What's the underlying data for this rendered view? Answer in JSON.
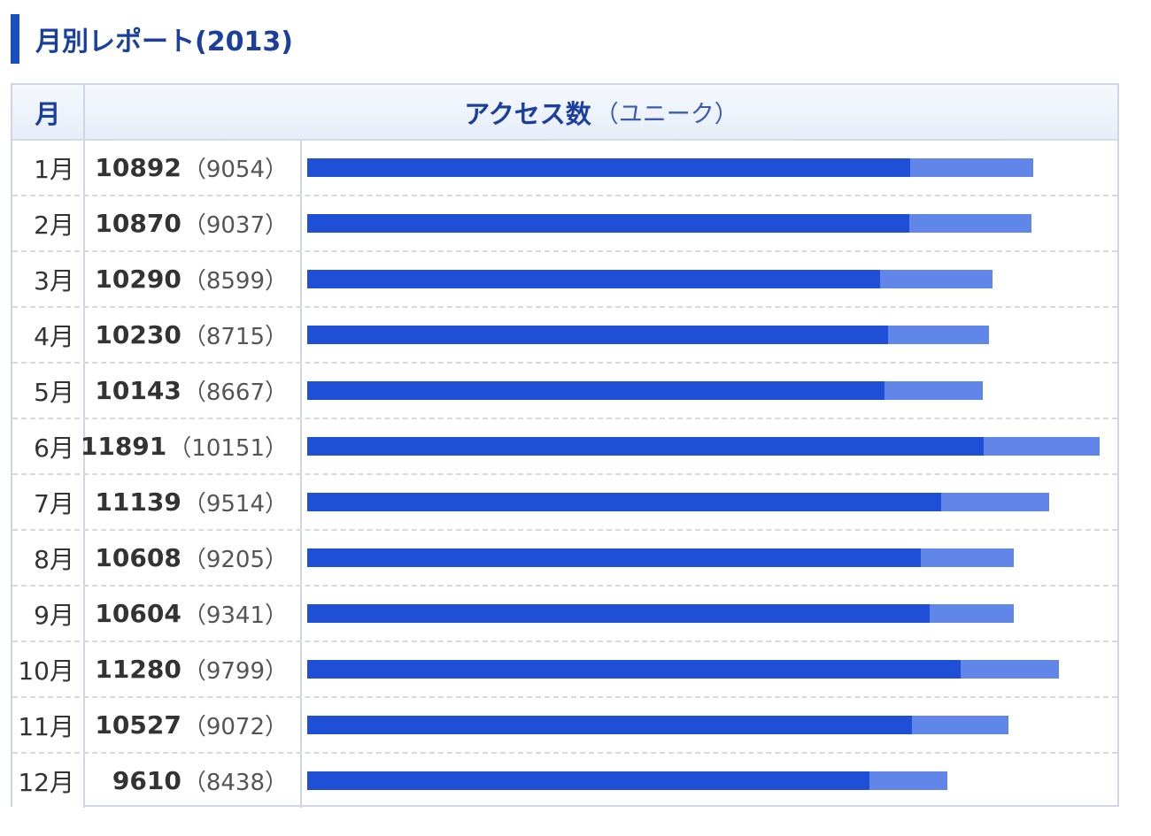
{
  "title": "月別レポート(2013)",
  "table": {
    "header_month": "月",
    "header_access": "アクセス数",
    "header_unique": "（ユニーク）"
  },
  "colors": {
    "accent": "#1a4fc0",
    "title_text": "#1a3f9c",
    "bar_unique": "#1f4fd6",
    "bar_total": "#5f86e8"
  },
  "chart_data": {
    "type": "bar",
    "orientation": "horizontal",
    "stacked": "overlay",
    "title": "月別レポート(2013)",
    "categories": [
      "1月",
      "2月",
      "3月",
      "4月",
      "5月",
      "6月",
      "7月",
      "8月",
      "9月",
      "10月",
      "11月",
      "12月"
    ],
    "series": [
      {
        "name": "アクセス数",
        "values": [
          10892,
          10870,
          10290,
          10230,
          10143,
          11891,
          11139,
          10608,
          10604,
          11280,
          10527,
          9610
        ]
      },
      {
        "name": "ユニーク",
        "values": [
          9054,
          9037,
          8599,
          8715,
          8667,
          10151,
          9514,
          9205,
          9341,
          9799,
          9072,
          8438
        ]
      }
    ],
    "rows": [
      {
        "month": "1月",
        "total": "10892",
        "unique": "（9054）"
      },
      {
        "month": "2月",
        "total": "10870",
        "unique": "（9037）"
      },
      {
        "month": "3月",
        "total": "10290",
        "unique": "（8599）"
      },
      {
        "month": "4月",
        "total": "10230",
        "unique": "（8715）"
      },
      {
        "month": "5月",
        "total": "10143",
        "unique": "（8667）"
      },
      {
        "month": "6月",
        "total": "11891",
        "unique": "（10151）"
      },
      {
        "month": "7月",
        "total": "11139",
        "unique": "（9514）"
      },
      {
        "month": "8月",
        "total": "10608",
        "unique": "（9205）"
      },
      {
        "month": "9月",
        "total": "10604",
        "unique": "（9341）"
      },
      {
        "month": "10月",
        "total": "11280",
        "unique": "（9799）"
      },
      {
        "month": "11月",
        "total": "10527",
        "unique": "（9072）"
      },
      {
        "month": "12月",
        "total": "9610",
        "unique": "（8438）"
      }
    ],
    "xlim": [
      0,
      11891
    ],
    "grid": false,
    "legend": "none"
  }
}
